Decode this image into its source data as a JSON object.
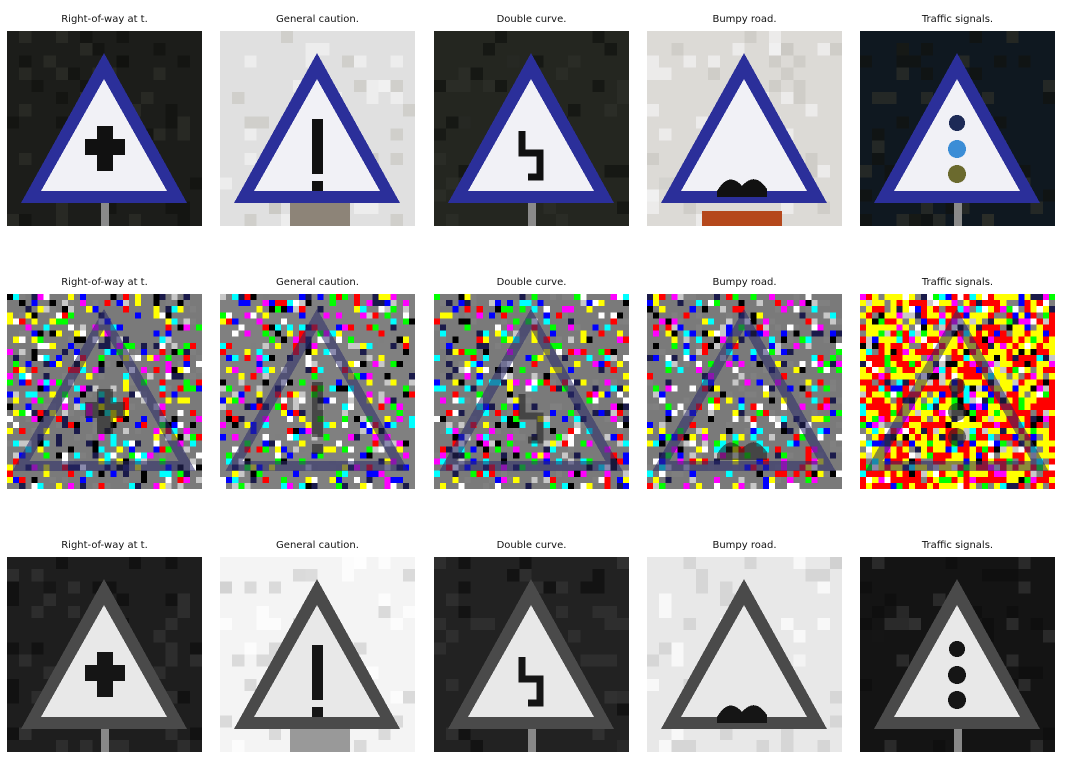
{
  "figure": {
    "rows": [
      {
        "variant": "original",
        "panels": [
          {
            "title": "Right-of-way at t.",
            "symbol": "right-of-way-icon"
          },
          {
            "title": "General caution.",
            "symbol": "exclamation-icon"
          },
          {
            "title": "Double curve.",
            "symbol": "double-curve-icon"
          },
          {
            "title": "Bumpy road.",
            "symbol": "bumpy-road-icon"
          },
          {
            "title": "Traffic signals.",
            "symbol": "traffic-light-icon"
          }
        ]
      },
      {
        "variant": "perturbed",
        "panels": [
          {
            "title": "Right-of-way at t.",
            "symbol": "right-of-way-icon"
          },
          {
            "title": "General caution.",
            "symbol": "exclamation-icon"
          },
          {
            "title": "Double curve.",
            "symbol": "double-curve-icon"
          },
          {
            "title": "Bumpy road.",
            "symbol": "bumpy-road-icon"
          },
          {
            "title": "Traffic signals.",
            "symbol": "traffic-light-icon"
          }
        ]
      },
      {
        "variant": "grayscale",
        "panels": [
          {
            "title": "Right-of-way at t.",
            "symbol": "right-of-way-icon"
          },
          {
            "title": "General caution.",
            "symbol": "exclamation-icon"
          },
          {
            "title": "Double curve.",
            "symbol": "double-curve-icon"
          },
          {
            "title": "Bumpy road.",
            "symbol": "bumpy-road-icon"
          },
          {
            "title": "Traffic signals.",
            "symbol": "traffic-light-icon"
          }
        ]
      }
    ]
  }
}
